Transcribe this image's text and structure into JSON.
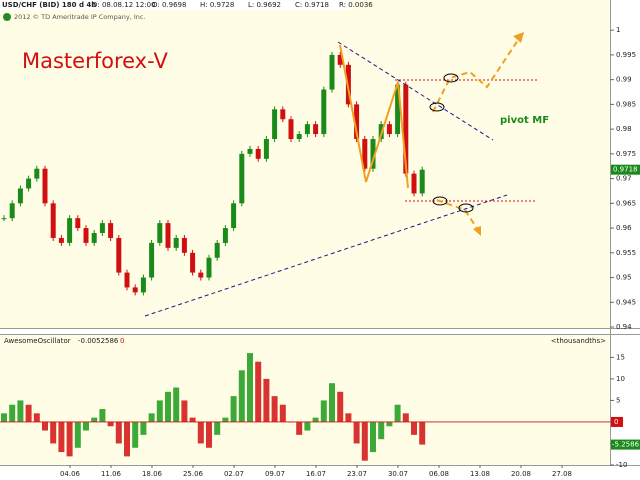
{
  "header": {
    "symbol": "USD/CHF (BID) 180 d 4h",
    "fields": [
      "D: 08.08.12 12:00",
      "O: 0.9698",
      "H: 0.9728",
      "L: 0.9692",
      "C: 0.9718",
      "R: 0.0036"
    ],
    "copyright": "2012 © TD Ameritrade IP Company, Inc."
  },
  "annotations": {
    "brand": "Masterforex-V",
    "pivot": "pivot MF"
  },
  "chart_data": [
    {
      "type": "candlestick",
      "up_color": "#1a8a1a",
      "down_color": "#d01010",
      "close": [
        0.962,
        0.965,
        0.968,
        0.97,
        0.972,
        0.965,
        0.958,
        0.957,
        0.962,
        0.96,
        0.957,
        0.959,
        0.961,
        0.958,
        0.951,
        0.948,
        0.947,
        0.95,
        0.957,
        0.961,
        0.956,
        0.958,
        0.955,
        0.951,
        0.95,
        0.954,
        0.957,
        0.96,
        0.965,
        0.975,
        0.976,
        0.974,
        0.978,
        0.984,
        0.982,
        0.978,
        0.979,
        0.981,
        0.979,
        0.988,
        0.995,
        0.993,
        0.985,
        0.978,
        0.972,
        0.978,
        0.981,
        0.979,
        0.989,
        0.971,
        0.967,
        0.9718
      ],
      "ylim": [
        0.9398,
        1.0061
      ],
      "yticks": [
        1,
        0.995,
        0.99,
        0.985,
        0.98,
        0.975,
        0.97,
        0.965,
        0.96,
        0.955,
        0.95,
        0.945,
        0.94
      ]
    },
    {
      "type": "bar",
      "title": "AwesomeOscillator",
      "current": "-0.0052586",
      "param": 0,
      "units": "<thousandths>",
      "up_color": "#1a9a1a",
      "down_color": "#d01010",
      "values": [
        2,
        4,
        5,
        4,
        2,
        -2,
        -5,
        -7,
        -8,
        -6,
        -2,
        1,
        3,
        -1,
        -5,
        -8,
        -6,
        -3,
        2,
        5,
        7,
        8,
        5,
        1,
        -5,
        -6,
        -3,
        1,
        6,
        12,
        16,
        14,
        10,
        6,
        4,
        0,
        -3,
        -2,
        1,
        5,
        9,
        7,
        2,
        -5,
        -9,
        -7,
        -4,
        -1,
        4,
        2,
        -3,
        -5.2586
      ],
      "ylim": [
        -10.7,
        20.2
      ],
      "yticks": [
        15,
        10,
        5,
        0,
        -5,
        -10
      ],
      "x_labels": [
        "04.06",
        "11.06",
        "18.06",
        "25.06",
        "02.07",
        "09.07",
        "16.07",
        "23.07",
        "30.07",
        "06.08",
        "13.08",
        "20.08",
        "27.08"
      ]
    }
  ]
}
